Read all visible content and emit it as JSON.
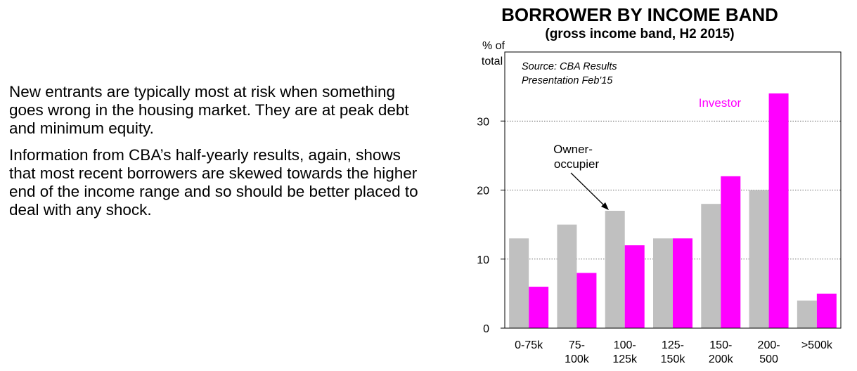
{
  "paragraphs": [
    "New entrants are typically most at risk when something goes wrong in the housing market. They are at peak debt and minimum equity.",
    "Information from CBA’s half-yearly results, again, shows that most recent borrowers are skewed towards the higher end of the income range and so should be better placed to deal with any shock."
  ],
  "chart_data": {
    "type": "bar",
    "title": "BORROWER BY INCOME BAND",
    "subtitle": "(gross income band, H2 2015)",
    "ylabel_lines": [
      "% of",
      "total"
    ],
    "source_lines": [
      "Source: CBA Results",
      "Presentation Feb'15"
    ],
    "categories": [
      [
        "0-75k"
      ],
      [
        "75-",
        "100k"
      ],
      [
        "100-",
        "125k"
      ],
      [
        "125-",
        "150k"
      ],
      [
        "150-",
        "200k"
      ],
      [
        "200-",
        "500"
      ],
      [
        ">500k"
      ]
    ],
    "series": [
      {
        "name": "Owner-occupier",
        "label_lines": [
          "Owner-",
          "occupier"
        ],
        "color": "#c0c0c0",
        "values": [
          13,
          15,
          17,
          13,
          18,
          20,
          4
        ]
      },
      {
        "name": "Investor",
        "label_lines": [
          "Investor"
        ],
        "color": "#ff00ff",
        "values": [
          6,
          8,
          12,
          13,
          22,
          34,
          5
        ]
      }
    ],
    "yticks": [
      0,
      10,
      20,
      30
    ],
    "ylim": [
      0,
      40
    ],
    "grid": true
  }
}
